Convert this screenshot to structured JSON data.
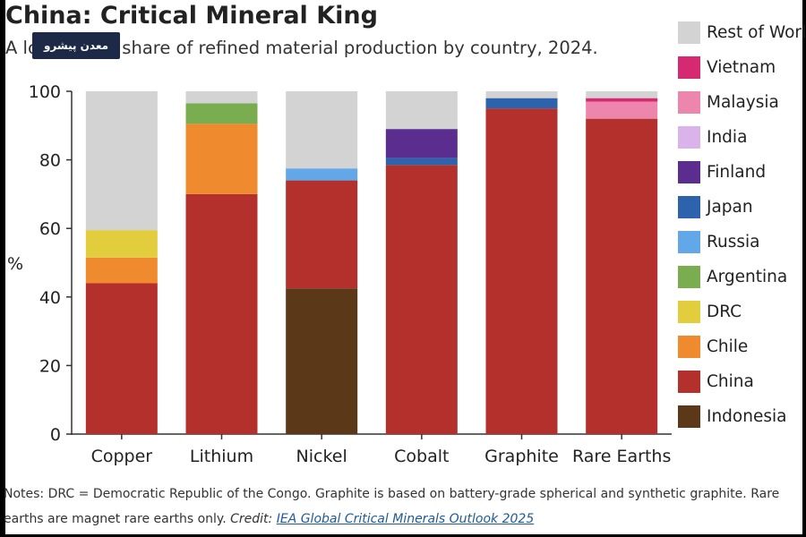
{
  "title": "China: Critical Mineral King",
  "subtitle": "A look at the share of refined material production by country, 2024.",
  "watermark": "معدن پیشرو",
  "notes": {
    "text": "Notes: DRC = Democratic Republic of the Congo. Graphite is based on battery-grade spherical and synthetic graphite. Rare earths are magnet rare earths only.",
    "credit_label": "Credit:",
    "credit_link": "IEA Global Critical Minerals Outlook 2025"
  },
  "chart_data": {
    "type": "bar",
    "stacked": true,
    "title": "China: Critical Mineral King",
    "subtitle": "A look at the share of refined material production by country, 2024.",
    "xlabel": "",
    "ylabel": "%",
    "ylim": [
      0,
      100
    ],
    "yticks": [
      0,
      20,
      40,
      60,
      80,
      100
    ],
    "grid": false,
    "legend_position": "right",
    "categories": [
      "Copper",
      "Lithium",
      "Nickel",
      "Cobalt",
      "Graphite",
      "Rare Earths"
    ],
    "series": [
      {
        "name": "Indonesia",
        "color": "#5a3818",
        "values": [
          0,
          0,
          42.5,
          0,
          0,
          0
        ]
      },
      {
        "name": "China",
        "color": "#b4302d",
        "values": [
          44,
          70,
          31.5,
          78.5,
          95,
          92
        ]
      },
      {
        "name": "Chile",
        "color": "#f08a2e",
        "values": [
          7.5,
          20.5,
          0,
          0,
          0,
          0
        ]
      },
      {
        "name": "DRC",
        "color": "#e2cd3c",
        "values": [
          8,
          0,
          0,
          0,
          0,
          0
        ]
      },
      {
        "name": "Argentina",
        "color": "#79ad4f",
        "values": [
          0,
          6,
          0,
          0,
          0,
          0
        ]
      },
      {
        "name": "Russia",
        "color": "#62a8e8",
        "values": [
          0,
          0,
          3.5,
          0,
          0,
          0
        ]
      },
      {
        "name": "Japan",
        "color": "#2d63ad",
        "values": [
          0,
          0,
          0,
          2,
          3,
          0
        ]
      },
      {
        "name": "Finland",
        "color": "#5b2d8f",
        "values": [
          0,
          0,
          0,
          8.5,
          0,
          0
        ]
      },
      {
        "name": "India",
        "color": "#d9b3ea",
        "values": [
          0,
          0,
          0,
          0,
          0,
          0
        ]
      },
      {
        "name": "Malaysia",
        "color": "#ec86ad",
        "values": [
          0,
          0,
          0,
          0,
          0,
          5
        ]
      },
      {
        "name": "Vietnam",
        "color": "#d52a72",
        "values": [
          0,
          0,
          0,
          0,
          0,
          1
        ]
      },
      {
        "name": "Rest of World",
        "color": "#d3d3d3",
        "values": [
          40.5,
          3.5,
          22.5,
          11,
          2,
          2
        ]
      }
    ],
    "legend_order": [
      "Rest of World",
      "Vietnam",
      "Malaysia",
      "India",
      "Finland",
      "Japan",
      "Russia",
      "Argentina",
      "DRC",
      "Chile",
      "China",
      "Indonesia"
    ],
    "legend_labels": [
      "Rest of Worl",
      "Vietnam",
      "Malaysia",
      "India",
      "Finland",
      "Japan",
      "Russia",
      "Argentina",
      "DRC",
      "Chile",
      "China",
      "Indonesia"
    ]
  }
}
